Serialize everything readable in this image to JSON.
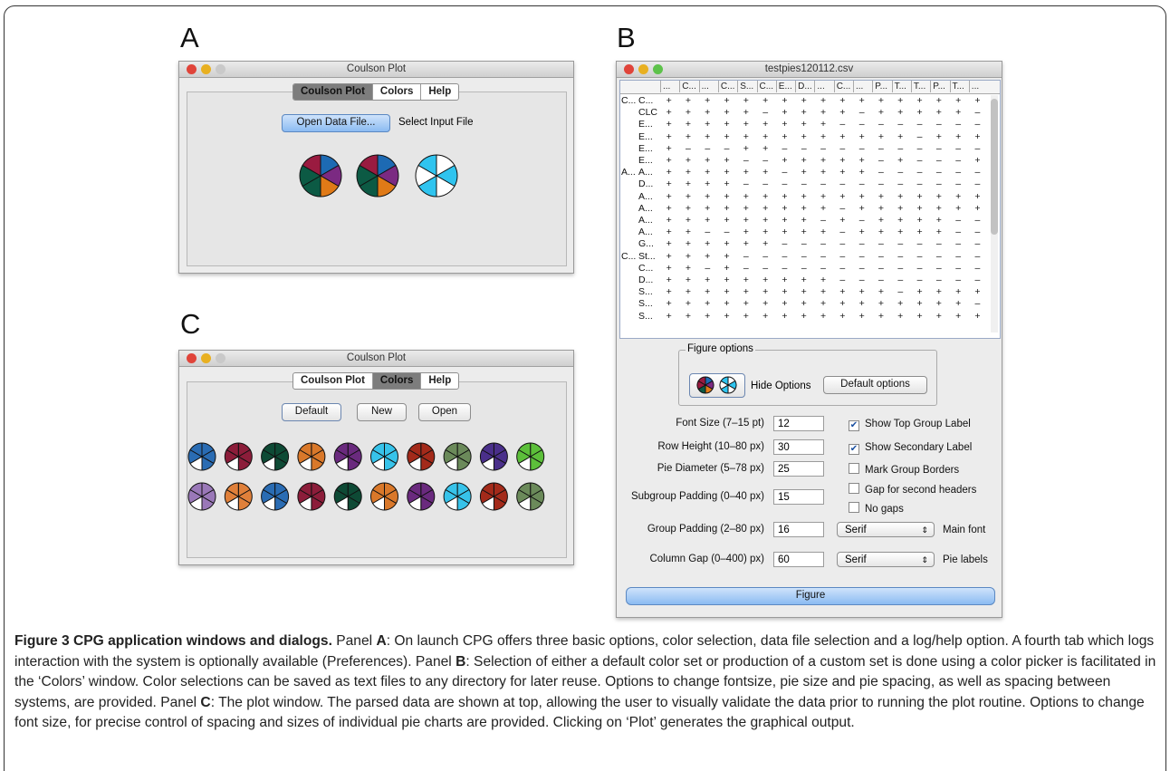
{
  "panels": {
    "a": "A",
    "b": "B",
    "c": "C"
  },
  "window_a": {
    "title": "Coulson Plot",
    "tabs": [
      "Coulson Plot",
      "Colors",
      "Help"
    ],
    "button": "Open Data File...",
    "label": "Select Input File"
  },
  "window_c": {
    "title": "Coulson Plot",
    "tabs": [
      "Coulson Plot",
      "Colors",
      "Help"
    ],
    "buttons": [
      "Default",
      "New",
      "Open"
    ]
  },
  "window_b": {
    "title": "testpies120112.csv",
    "table": {
      "header": [
        "...",
        "C...",
        "...",
        "C...",
        "S...",
        "C...",
        "E...",
        "D...",
        "...",
        "C...",
        "...",
        "P...",
        "T...",
        "T...",
        "P...",
        "T...",
        "..."
      ],
      "rows": [
        {
          "group": "C...",
          "name": "C...",
          "cells": [
            "+",
            "+",
            "+",
            "+",
            "+",
            "+",
            "+",
            "+",
            "+",
            "+",
            "+",
            "+",
            "+",
            "+",
            "+",
            "+",
            "+"
          ]
        },
        {
          "name": "CLC",
          "cells": [
            "+",
            "+",
            "+",
            "+",
            "+",
            "–",
            "+",
            "+",
            "+",
            "+",
            "–",
            "+",
            "+",
            "+",
            "+",
            "+",
            "–"
          ]
        },
        {
          "name": "E...",
          "cells": [
            "+",
            "+",
            "+",
            "+",
            "+",
            "+",
            "+",
            "+",
            "+",
            "–",
            "–",
            "–",
            "–",
            "–",
            "–",
            "–",
            "–"
          ]
        },
        {
          "name": "E...",
          "cells": [
            "+",
            "+",
            "+",
            "+",
            "+",
            "+",
            "+",
            "+",
            "+",
            "+",
            "+",
            "+",
            "+",
            "–",
            "+",
            "+",
            "+"
          ]
        },
        {
          "name": "E...",
          "cells": [
            "+",
            "–",
            "–",
            "–",
            "+",
            "+",
            "–",
            "–",
            "–",
            "–",
            "–",
            "–",
            "–",
            "–",
            "–",
            "–",
            "–"
          ]
        },
        {
          "name": "E...",
          "cells": [
            "+",
            "+",
            "+",
            "+",
            "–",
            "–",
            "+",
            "+",
            "+",
            "+",
            "+",
            "–",
            "+",
            "–",
            "–",
            "–",
            "+"
          ]
        },
        {
          "group": "A...",
          "name": "A...",
          "cells": [
            "+",
            "+",
            "+",
            "+",
            "+",
            "+",
            "–",
            "+",
            "+",
            "+",
            "+",
            "–",
            "–",
            "–",
            "–",
            "–",
            "–"
          ]
        },
        {
          "name": "D...",
          "cells": [
            "+",
            "+",
            "+",
            "+",
            "–",
            "–",
            "–",
            "–",
            "–",
            "–",
            "–",
            "–",
            "–",
            "–",
            "–",
            "–",
            "–"
          ]
        },
        {
          "name": "A...",
          "cells": [
            "+",
            "+",
            "+",
            "+",
            "+",
            "+",
            "+",
            "+",
            "+",
            "+",
            "+",
            "+",
            "+",
            "+",
            "+",
            "+",
            "+"
          ]
        },
        {
          "name": "A...",
          "cells": [
            "+",
            "+",
            "+",
            "+",
            "+",
            "+",
            "+",
            "+",
            "+",
            "–",
            "+",
            "+",
            "+",
            "+",
            "+",
            "+",
            "+"
          ]
        },
        {
          "name": "A...",
          "cells": [
            "+",
            "+",
            "+",
            "+",
            "+",
            "+",
            "+",
            "+",
            "–",
            "+",
            "–",
            "+",
            "+",
            "+",
            "+",
            "–",
            "–"
          ]
        },
        {
          "name": "A...",
          "cells": [
            "+",
            "+",
            "–",
            "–",
            "+",
            "+",
            "+",
            "+",
            "+",
            "–",
            "+",
            "+",
            "+",
            "+",
            "+",
            "–",
            "–"
          ]
        },
        {
          "name": "G...",
          "cells": [
            "+",
            "+",
            "+",
            "+",
            "+",
            "+",
            "–",
            "–",
            "–",
            "–",
            "–",
            "–",
            "–",
            "–",
            "–",
            "–",
            "–"
          ]
        },
        {
          "group": "C...",
          "name": "St...",
          "cells": [
            "+",
            "+",
            "+",
            "+",
            "–",
            "–",
            "–",
            "–",
            "–",
            "–",
            "–",
            "–",
            "–",
            "–",
            "–",
            "–",
            "–"
          ]
        },
        {
          "name": "C...",
          "cells": [
            "+",
            "+",
            "–",
            "+",
            "–",
            "–",
            "–",
            "–",
            "–",
            "–",
            "–",
            "–",
            "–",
            "–",
            "–",
            "–",
            "–"
          ]
        },
        {
          "name": "D...",
          "cells": [
            "+",
            "+",
            "+",
            "+",
            "+",
            "+",
            "+",
            "+",
            "+",
            "–",
            "–",
            "–",
            "–",
            "–",
            "–",
            "–",
            "–"
          ]
        },
        {
          "name": "S...",
          "cells": [
            "+",
            "+",
            "+",
            "+",
            "+",
            "+",
            "+",
            "+",
            "+",
            "+",
            "+",
            "+",
            "–",
            "+",
            "+",
            "+",
            "+"
          ]
        },
        {
          "name": "S...",
          "cells": [
            "+",
            "+",
            "+",
            "+",
            "+",
            "+",
            "+",
            "+",
            "+",
            "+",
            "+",
            "+",
            "+",
            "+",
            "+",
            "+",
            "–"
          ]
        },
        {
          "name": "S...",
          "cells": [
            "+",
            "+",
            "+",
            "+",
            "+",
            "+",
            "+",
            "+",
            "+",
            "+",
            "+",
            "+",
            "+",
            "+",
            "+",
            "+",
            "+"
          ]
        }
      ]
    },
    "figure_options": {
      "legend": "Figure options",
      "hide": "Hide Options",
      "default": "Default options"
    },
    "fields": [
      {
        "label": "Font Size (7–15 pt)",
        "value": "12"
      },
      {
        "label": "Row Height (10–80 px)",
        "value": "30"
      },
      {
        "label": "Pie Diameter (5–78 px)",
        "value": "25"
      },
      {
        "label": "Subgroup Padding (0–40 px)",
        "value": "15"
      },
      {
        "label": "Group Padding (2–80 px)",
        "value": "16"
      },
      {
        "label": "Column Gap (0–400) px)",
        "value": "60"
      }
    ],
    "checkboxes": [
      {
        "label": "Show Top Group Label",
        "checked": true
      },
      {
        "label": "Show Secondary Label",
        "checked": true
      },
      {
        "label": "Mark Group Borders",
        "checked": false
      },
      {
        "label": "Gap for second headers",
        "checked": false
      },
      {
        "label": "No gaps",
        "checked": false
      }
    ],
    "selects": [
      {
        "value": "Serif",
        "label": "Main font"
      },
      {
        "value": "Serif",
        "label": "Pie labels"
      }
    ],
    "button": "Figure"
  },
  "caption": {
    "title": "Figure 3 CPG application windows and dialogs.",
    "parts": [
      {
        "text": " Panel "
      },
      {
        "text": "A",
        "bold": true
      },
      {
        "text": ": On launch CPG offers three basic options, color selection, data file selection and a log/help option. A fourth tab which logs interaction with the system is optionally available (Preferences). Panel "
      },
      {
        "text": "B",
        "bold": true
      },
      {
        "text": ": Selection of either a default color set or production of a custom set is done using a color picker is facilitated in the ‘Colors’ window. Color selections can be saved as text files to any directory for later reuse. Options to change fontsize, pie size and pie spacing, as well as spacing between systems, are provided. Panel "
      },
      {
        "text": "C",
        "bold": true
      },
      {
        "text": ": The plot window. The parsed data are shown at top, allowing the user to visually validate the data prior to running the plot routine. Options to change font size, for precise control of spacing and sizes of individual pie charts are provided. Clicking on ‘Plot’ generates the graphical output."
      }
    ]
  }
}
